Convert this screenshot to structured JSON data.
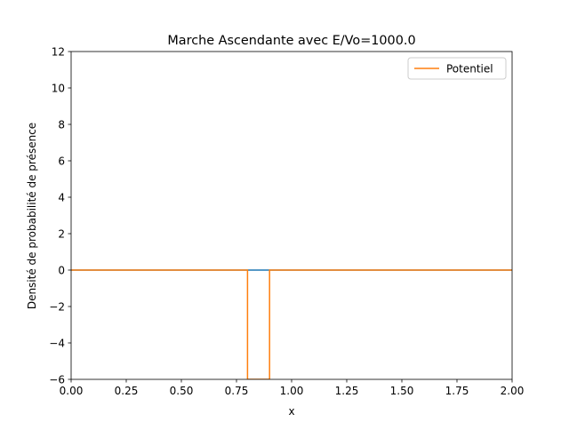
{
  "chart_data": {
    "type": "line",
    "title": "Marche Ascendante avec E/Vo=1000.0",
    "xlabel": "x",
    "ylabel": "Densité de probabilité de présence",
    "xlim": [
      0,
      2
    ],
    "ylim": [
      -6,
      12
    ],
    "xticks": [
      0,
      0.25,
      0.5,
      0.75,
      1.0,
      1.25,
      1.5,
      1.75,
      2.0
    ],
    "xtick_labels": [
      "0.00",
      "0.25",
      "0.50",
      "0.75",
      "1.00",
      "1.25",
      "1.50",
      "1.75",
      "2.00"
    ],
    "yticks": [
      -6,
      -4,
      -2,
      0,
      2,
      4,
      6,
      8,
      10,
      12
    ],
    "ytick_labels": [
      "−6",
      "−4",
      "−2",
      "0",
      "2",
      "4",
      "6",
      "8",
      "10",
      "12"
    ],
    "grid": false,
    "legend_position": "top-right",
    "series": [
      {
        "name": "",
        "color": "#1f77b4",
        "x": [
          0,
          0.8,
          0.9,
          2.0
        ],
        "y": [
          0,
          0,
          0,
          0
        ]
      },
      {
        "name": "Potentiel",
        "color": "#ff7f0e",
        "x": [
          0,
          0.8,
          0.8,
          0.9,
          0.9,
          2.0
        ],
        "y": [
          0,
          0,
          -6,
          -6,
          0,
          0
        ]
      }
    ]
  }
}
